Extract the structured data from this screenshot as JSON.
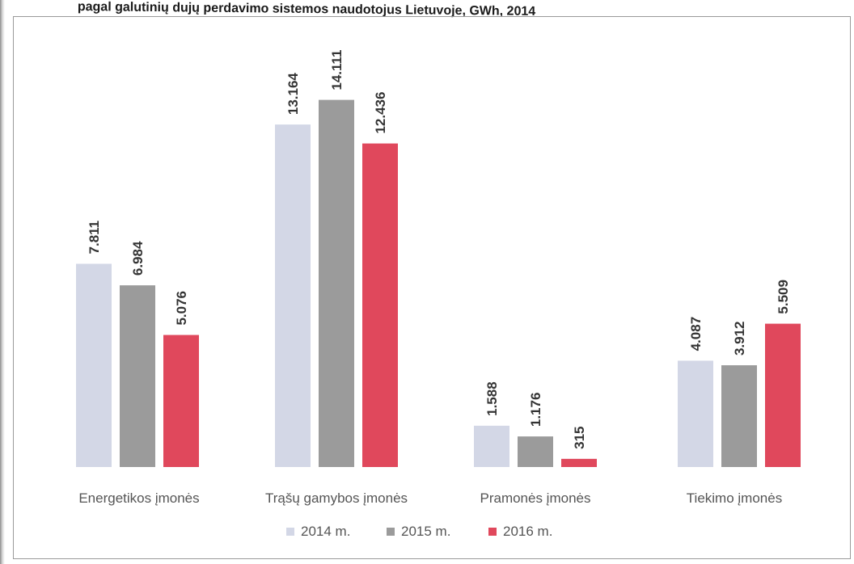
{
  "title": "pagal galutinių dujų perdavimo sistemos naudotojus Lietuvoje, GWh, 2014",
  "chart_data": {
    "type": "bar",
    "categories": [
      "Energetikos įmonės",
      "Trąšų gamybos įmonės",
      "Pramonės įmonės",
      "Tiekimo įmonės"
    ],
    "series": [
      {
        "name": "2014 m.",
        "color": "#d3d7e6",
        "values": [
          7811,
          13164,
          1588,
          4087
        ],
        "labels": [
          "7.811",
          "13.164",
          "1.588",
          "4.087"
        ]
      },
      {
        "name": "2015 m.",
        "color": "#9b9b9b",
        "values": [
          6984,
          14111,
          1176,
          3912
        ],
        "labels": [
          "6.984",
          "14.111",
          "1.176",
          "3.912"
        ]
      },
      {
        "name": "2016 m.",
        "color": "#e0485c",
        "values": [
          5076,
          12436,
          315,
          5509
        ],
        "labels": [
          "5.076",
          "12.436",
          "315",
          "5.509"
        ]
      }
    ],
    "ylim": [
      0,
      15000
    ],
    "legend_position": "bottom",
    "grid": false,
    "data_labels_rotated": true
  }
}
